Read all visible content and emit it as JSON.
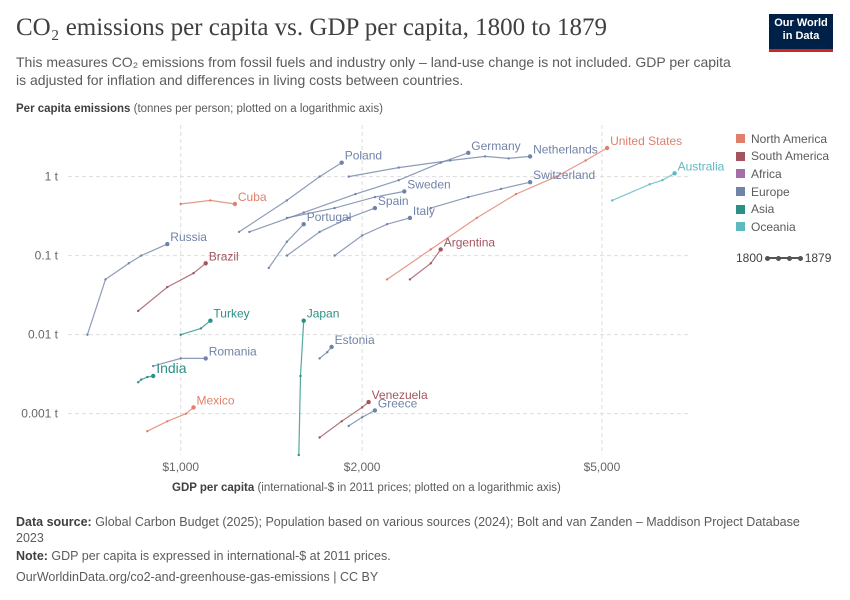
{
  "header": {
    "title": "CO₂ emissions per capita vs. GDP per capita, 1800 to 1879",
    "subtitle": "This measures CO₂ emissions from fossil fuels and industry only – land-use change is not included. GDP per capita is adjusted for inflation and differences in living costs between countries.",
    "logo_line1": "Our World",
    "logo_line2": "in Data"
  },
  "axes": {
    "y_label_bold": "Per capita emissions",
    "y_label_rest": " (tonnes per person; plotted on a logarithmic axis)",
    "x_label_bold": "GDP per capita",
    "x_label_rest": " (international-$ in 2011 prices; plotted on a logarithmic axis)"
  },
  "legend": {
    "items": [
      {
        "label": "North America",
        "color": "#e0806c"
      },
      {
        "label": "South America",
        "color": "#a2555f"
      },
      {
        "label": "Africa",
        "color": "#a66ea8"
      },
      {
        "label": "Europe",
        "color": "#7183a8"
      },
      {
        "label": "Asia",
        "color": "#2a9187"
      },
      {
        "label": "Oceania",
        "color": "#5fb9c1"
      }
    ],
    "timeline_start": "1800",
    "timeline_end": "1879"
  },
  "footer": {
    "source_bold": "Data source:",
    "source_text": " Global Carbon Budget (2025); Population based on various sources (2024); Bolt and van Zanden – Maddison Project Database 2023",
    "note_bold": "Note:",
    "note_text": " GDP per capita is expressed in international-$ at 2011 prices.",
    "url": "OurWorldinData.org/co2-and-greenhouse-gas-emissions | CC BY"
  },
  "chart_data": {
    "type": "scatter",
    "x_scale": "log",
    "y_scale": "log",
    "xlim": [
      650,
      7000
    ],
    "ylim": [
      0.0003,
      4.5
    ],
    "x_ticks": [
      {
        "value": 1000,
        "label": "$1,000"
      },
      {
        "value": 2000,
        "label": "$2,000"
      },
      {
        "value": 5000,
        "label": "$5,000"
      }
    ],
    "y_ticks": [
      {
        "value": 0.001,
        "label": "0.001 t"
      },
      {
        "value": 0.01,
        "label": "0.01 t"
      },
      {
        "value": 0.1,
        "label": "0.1 t"
      },
      {
        "value": 1,
        "label": "1 t"
      }
    ],
    "grid": true,
    "series": [
      {
        "name": "United States",
        "region": "North America",
        "x": [
          2200,
          2600,
          3100,
          3600,
          4200,
          4700,
          5100
        ],
        "y": [
          0.05,
          0.12,
          0.3,
          0.6,
          1.0,
          1.6,
          2.3
        ]
      },
      {
        "name": "Germany",
        "region": "Europe",
        "x": [
          1300,
          1600,
          1950,
          2300,
          2700,
          3000
        ],
        "y": [
          0.2,
          0.35,
          0.6,
          0.9,
          1.5,
          2.0
        ]
      },
      {
        "name": "Netherlands",
        "region": "Europe",
        "x": [
          1900,
          2300,
          2800,
          3200,
          3500,
          3800
        ],
        "y": [
          1.0,
          1.3,
          1.6,
          1.8,
          1.7,
          1.8
        ]
      },
      {
        "name": "Poland",
        "region": "Europe",
        "x": [
          1250,
          1500,
          1700,
          1850
        ],
        "y": [
          0.2,
          0.5,
          1.0,
          1.5
        ]
      },
      {
        "name": "Australia",
        "region": "Oceania",
        "x": [
          5200,
          6000,
          6300,
          6600
        ],
        "y": [
          0.5,
          0.8,
          0.9,
          1.1
        ]
      },
      {
        "name": "Sweden",
        "region": "Europe",
        "x": [
          1500,
          1800,
          2100,
          2350
        ],
        "y": [
          0.3,
          0.4,
          0.55,
          0.65
        ]
      },
      {
        "name": "Switzerland",
        "region": "Europe",
        "x": [
          2600,
          3000,
          3400,
          3800
        ],
        "y": [
          0.4,
          0.55,
          0.7,
          0.85
        ]
      },
      {
        "name": "Spain",
        "region": "Europe",
        "x": [
          1500,
          1700,
          1900,
          2100
        ],
        "y": [
          0.1,
          0.2,
          0.3,
          0.4
        ]
      },
      {
        "name": "Italy",
        "region": "Europe",
        "x": [
          1800,
          2000,
          2200,
          2400
        ],
        "y": [
          0.1,
          0.18,
          0.25,
          0.3
        ]
      },
      {
        "name": "Cuba",
        "region": "North America",
        "x": [
          1000,
          1120,
          1230
        ],
        "y": [
          0.45,
          0.5,
          0.45
        ]
      },
      {
        "name": "Portugal",
        "region": "Europe",
        "x": [
          1400,
          1500,
          1600
        ],
        "y": [
          0.07,
          0.15,
          0.25
        ]
      },
      {
        "name": "Russia",
        "region": "Europe",
        "x": [
          700,
          750,
          820,
          860,
          950
        ],
        "y": [
          0.01,
          0.05,
          0.08,
          0.1,
          0.14
        ]
      },
      {
        "name": "Argentina",
        "region": "South America",
        "x": [
          2400,
          2600,
          2700
        ],
        "y": [
          0.05,
          0.08,
          0.12
        ]
      },
      {
        "name": "Brazil",
        "region": "South America",
        "x": [
          850,
          950,
          1050,
          1100
        ],
        "y": [
          0.02,
          0.04,
          0.06,
          0.08
        ]
      },
      {
        "name": "Turkey",
        "region": "Asia",
        "x": [
          1000,
          1080,
          1120
        ],
        "y": [
          0.01,
          0.012,
          0.015
        ]
      },
      {
        "name": "Japan",
        "region": "Asia",
        "x": [
          1570,
          1580,
          1600
        ],
        "y": [
          0.0003,
          0.003,
          0.015
        ]
      },
      {
        "name": "Estonia",
        "region": "Europe",
        "x": [
          1700,
          1750,
          1780
        ],
        "y": [
          0.005,
          0.006,
          0.007
        ]
      },
      {
        "name": "Romania",
        "region": "Europe",
        "x": [
          900,
          1000,
          1100
        ],
        "y": [
          0.004,
          0.005,
          0.005
        ]
      },
      {
        "name": "India",
        "region": "Asia",
        "x": [
          850,
          860,
          880,
          900
        ],
        "y": [
          0.0025,
          0.0027,
          0.0029,
          0.003
        ]
      },
      {
        "name": "Mexico",
        "region": "North America",
        "x": [
          880,
          950,
          1020,
          1050
        ],
        "y": [
          0.0006,
          0.0008,
          0.001,
          0.0012
        ]
      },
      {
        "name": "Venezuela",
        "region": "South America",
        "x": [
          1700,
          1850,
          2000,
          2050
        ],
        "y": [
          0.0005,
          0.0008,
          0.0012,
          0.0014
        ]
      },
      {
        "name": "Greece",
        "region": "Europe",
        "x": [
          1900,
          2000,
          2100
        ],
        "y": [
          0.0007,
          0.0009,
          0.0011
        ]
      }
    ]
  }
}
